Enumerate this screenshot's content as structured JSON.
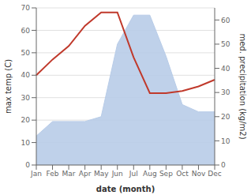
{
  "chart_data": {
    "type": "line",
    "xlabel": "date (month)",
    "ylabel": "max temp (C)",
    "y2label": "med. precipitation (kg/m2)",
    "categories": [
      "Jan",
      "Feb",
      "Mar",
      "Apr",
      "May",
      "Jun",
      "Jul",
      "Aug",
      "Sep",
      "Oct",
      "Nov",
      "Dec"
    ],
    "series": [
      {
        "type": "area",
        "axis": "y2",
        "color": "#b8cce8",
        "values": [
          12,
          18,
          18,
          18,
          20,
          50,
          62,
          62,
          45,
          25,
          22,
          22
        ]
      },
      {
        "type": "line",
        "color": "#c0392b",
        "values": [
          40,
          47,
          53,
          62,
          68,
          68,
          48,
          32,
          32,
          33,
          35,
          38
        ]
      }
    ],
    "ylim": [
      0,
      70
    ],
    "yticks": [
      0,
      10,
      20,
      30,
      40,
      50,
      60,
      70
    ],
    "y2lim": [
      0,
      65
    ],
    "y2ticks": [
      0,
      10,
      20,
      30,
      40,
      50,
      60
    ],
    "grid": true
  }
}
